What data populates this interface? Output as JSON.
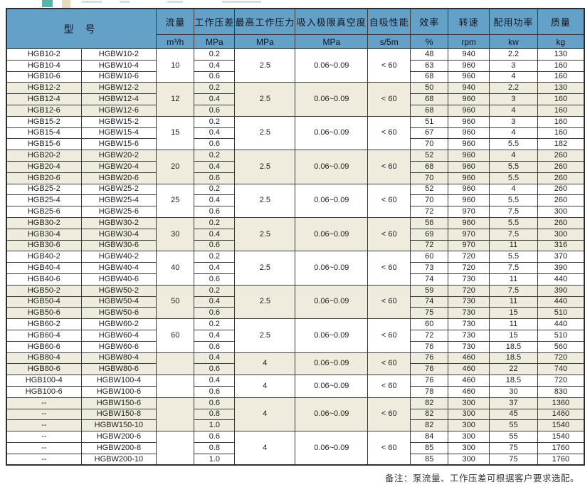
{
  "page": {
    "note": "备注：泵流量、工作压差可根据客户要求选配。"
  },
  "colors": {
    "header_bg": "#63a1c9",
    "group_shade": "#f0ecdd",
    "row_white": "#ffffff",
    "border": "#3c3c3c",
    "deco_teal": "#55b5ab",
    "deco_tan": "#e7dbbf"
  },
  "table": {
    "header": {
      "model": "型  号",
      "columns": [
        {
          "label": "流量",
          "unit": "m³/h"
        },
        {
          "label": "工作压差",
          "unit": "MPa"
        },
        {
          "label": "最高工作压力",
          "unit": "MPa"
        },
        {
          "label": "吸入极限真空度",
          "unit": "MPa"
        },
        {
          "label": "自吸性能",
          "unit": "s/5m"
        },
        {
          "label": "效率",
          "unit": "%"
        },
        {
          "label": "转速",
          "unit": "rpm"
        },
        {
          "label": "配用功率",
          "unit": "kw"
        },
        {
          "label": "质量",
          "unit": "kg"
        }
      ]
    },
    "groups": [
      {
        "flow": "10",
        "max_pressure": "2.5",
        "vacuum": "0.06~0.09",
        "self_priming": "< 60",
        "shaded": false,
        "rows": [
          [
            "HGB10-2",
            "HGBW10-2",
            "0.2",
            "48",
            "940",
            "2.2",
            "130"
          ],
          [
            "HGB10-4",
            "HGBW10-4",
            "0.4",
            "63",
            "960",
            "3",
            "160"
          ],
          [
            "HGB10-6",
            "HGBW10-6",
            "0.6",
            "68",
            "960",
            "4",
            "160"
          ]
        ]
      },
      {
        "flow": "12",
        "max_pressure": "2.5",
        "vacuum": "0.06~0.09",
        "self_priming": "< 60",
        "shaded": true,
        "rows": [
          [
            "HGB12-2",
            "HGBW12-2",
            "0.2",
            "50",
            "940",
            "2.2",
            "130"
          ],
          [
            "HGB12-4",
            "HGBW12-4",
            "0.4",
            "68",
            "960",
            "3",
            "160"
          ],
          [
            "HGB12-6",
            "HGBW12-6",
            "0.6",
            "68",
            "960",
            "4",
            "160"
          ]
        ]
      },
      {
        "flow": "15",
        "max_pressure": "2.5",
        "vacuum": "0.06~0.09",
        "self_priming": "< 60",
        "shaded": false,
        "rows": [
          [
            "HGB15-2",
            "HGBW15-2",
            "0.2",
            "51",
            "960",
            "3",
            "160"
          ],
          [
            "HGB15-4",
            "HGBW15-4",
            "0.4",
            "67",
            "960",
            "4",
            "160"
          ],
          [
            "HGB15-6",
            "HGBW15-6",
            "0.6",
            "70",
            "960",
            "5.5",
            "182"
          ]
        ]
      },
      {
        "flow": "20",
        "max_pressure": "2.5",
        "vacuum": "0.06~0.09",
        "self_priming": "< 60",
        "shaded": true,
        "rows": [
          [
            "HGB20-2",
            "HGBW20-2",
            "0.2",
            "52",
            "960",
            "4",
            "260"
          ],
          [
            "HGB20-4",
            "HGBW20-4",
            "0.4",
            "68",
            "960",
            "5.5",
            "260"
          ],
          [
            "HGB20-6",
            "HGBW20-6",
            "0.6",
            "70",
            "960",
            "5.5",
            "260"
          ]
        ]
      },
      {
        "flow": "25",
        "max_pressure": "2.5",
        "vacuum": "0.06~0.09",
        "self_priming": "< 60",
        "shaded": false,
        "rows": [
          [
            "HGB25-2",
            "HGBW25-2",
            "0.2",
            "52",
            "960",
            "4",
            "260"
          ],
          [
            "HGB25-4",
            "HGBW25-4",
            "0.4",
            "70",
            "960",
            "5.5",
            "260"
          ],
          [
            "HGB25-6",
            "HGBW25-6",
            "0.6",
            "72",
            "970",
            "7.5",
            "300"
          ]
        ]
      },
      {
        "flow": "30",
        "max_pressure": "2.5",
        "vacuum": "0.06~0.09",
        "self_priming": "< 60",
        "shaded": true,
        "rows": [
          [
            "HGB30-2",
            "HGBW30-2",
            "0.2",
            "56",
            "960",
            "5.5",
            "260"
          ],
          [
            "HGB30-4",
            "HGBW30-4",
            "0.4",
            "69",
            "970",
            "7.5",
            "300"
          ],
          [
            "HGB30-6",
            "HGBW30-6",
            "0.6",
            "72",
            "970",
            "11",
            "316"
          ]
        ]
      },
      {
        "flow": "40",
        "max_pressure": "2.5",
        "vacuum": "0.06~0.09",
        "self_priming": "< 60",
        "shaded": false,
        "rows": [
          [
            "HGB40-2",
            "HGBW40-2",
            "0.2",
            "60",
            "720",
            "5.5",
            "370"
          ],
          [
            "HGB40-4",
            "HGBW40-4",
            "0.4",
            "73",
            "720",
            "7.5",
            "390"
          ],
          [
            "HGB40-6",
            "HGBW40-6",
            "0.6",
            "74",
            "730",
            "11",
            "440"
          ]
        ]
      },
      {
        "flow": "50",
        "max_pressure": "2.5",
        "vacuum": "0.06~0.09",
        "self_priming": "< 60",
        "shaded": true,
        "rows": [
          [
            "HGB50-2",
            "HGBW50-2",
            "0.2",
            "59",
            "720",
            "7.5",
            "390"
          ],
          [
            "HGB50-4",
            "HGBW50-4",
            "0.4",
            "74",
            "730",
            "11",
            "440"
          ],
          [
            "HGB50-6",
            "HGBW50-6",
            "0.6",
            "75",
            "730",
            "15",
            "510"
          ]
        ]
      },
      {
        "flow": "60",
        "max_pressure": "2.5",
        "vacuum": "0.06~0.09",
        "self_priming": "< 60",
        "shaded": false,
        "rows": [
          [
            "HGB60-2",
            "HGBW60-2",
            "0.2",
            "60",
            "730",
            "11",
            "440"
          ],
          [
            "HGB60-4",
            "HGBW60-4",
            "0.4",
            "72",
            "730",
            "15",
            "510"
          ],
          [
            "HGB60-6",
            "HGBW60-6",
            "0.6",
            "76",
            "730",
            "18.5",
            "560"
          ]
        ]
      },
      {
        "flow": "",
        "max_pressure": "4",
        "vacuum": "0.06~0.09",
        "self_priming": "< 60",
        "shaded": true,
        "rows": [
          [
            "HGB80-4",
            "HGBW80-4",
            "0.4",
            "76",
            "460",
            "18.5",
            "720"
          ],
          [
            "HGB80-6",
            "HGBW80-6",
            "0.6",
            "76",
            "460",
            "22",
            "740"
          ]
        ]
      },
      {
        "flow": "",
        "max_pressure": "4",
        "vacuum": "0.06~0.09",
        "self_priming": "< 60",
        "shaded": false,
        "rows": [
          [
            "HGB100-4",
            "HGBW100-4",
            "0.4",
            "76",
            "460",
            "18.5",
            "720"
          ],
          [
            "HGB100-6",
            "HGBW100-6",
            "0.6",
            "78",
            "460",
            "30",
            "830"
          ]
        ]
      },
      {
        "flow": "",
        "max_pressure": "4",
        "vacuum": "0.06~0.09",
        "self_priming": "< 60",
        "shaded": true,
        "rows": [
          [
            "--",
            "HGBW150-6",
            "0.6",
            "82",
            "300",
            "37",
            "1360"
          ],
          [
            "--",
            "HGBW150-8",
            "0.8",
            "82",
            "300",
            "45",
            "1460"
          ],
          [
            "--",
            "HGBW150-10",
            "1.0",
            "82",
            "300",
            "55",
            "1540"
          ]
        ]
      },
      {
        "flow": "",
        "max_pressure": "4",
        "vacuum": "0.06~0.09",
        "self_priming": "< 60",
        "shaded": false,
        "rows": [
          [
            "--",
            "HGBW200-6",
            "0.6",
            "84",
            "300",
            "55",
            "1540"
          ],
          [
            "--",
            "HGBW200-8",
            "0.8",
            "85",
            "300",
            "75",
            "1760"
          ],
          [
            "--",
            "HGBW200-10",
            "1.0",
            "85",
            "300",
            "75",
            "1760"
          ]
        ]
      }
    ]
  }
}
